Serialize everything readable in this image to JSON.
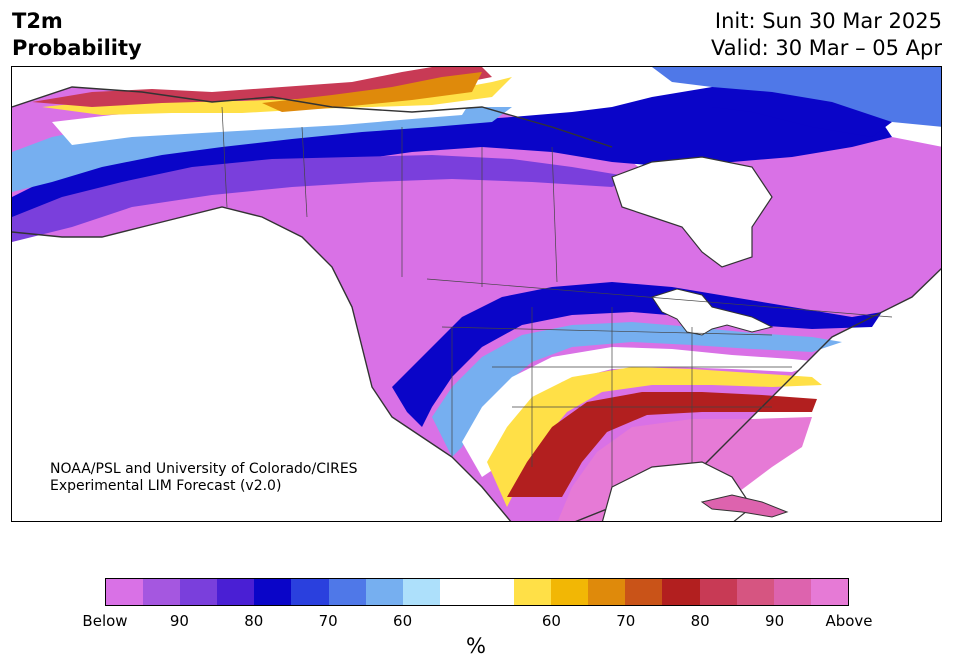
{
  "header": {
    "variable": "T2m",
    "product": "Probability",
    "init": "Init: Sun 30 Mar 2025",
    "valid": "Valid: 30 Mar – 05 Apr"
  },
  "credit": {
    "line1": "NOAA/PSL and University of Colorado/CIRES",
    "line2": "Experimental LIM Forecast (v2.0)"
  },
  "colorbar": {
    "colors": [
      "#d971e6",
      "#a557e0",
      "#7a3fdc",
      "#4a1fd4",
      "#0a05c8",
      "#2a40de",
      "#4f78e8",
      "#76aff0",
      "#ade0fb",
      "#ffffff",
      "#ffffff",
      "#ffe047",
      "#f2b705",
      "#df8a0b",
      "#c95318",
      "#b21f1f",
      "#c83a55",
      "#d65581",
      "#dd63ae",
      "#e67ad6"
    ],
    "ticks": [
      "Below",
      "90",
      "80",
      "70",
      "60",
      "60",
      "70",
      "80",
      "90",
      "Above"
    ],
    "unit": "%"
  },
  "map_colors": {
    "below_strong": "#d971e6",
    "below_mid": "#7a3fdc",
    "below_blue": "#0a05c8",
    "below_light": "#76aff0",
    "neutral": "#ffffff",
    "above_yellow": "#ffe047",
    "above_orange": "#df8a0b",
    "above_red": "#b21f1f",
    "above_strong": "#e67ad6",
    "coast": "#333333"
  }
}
